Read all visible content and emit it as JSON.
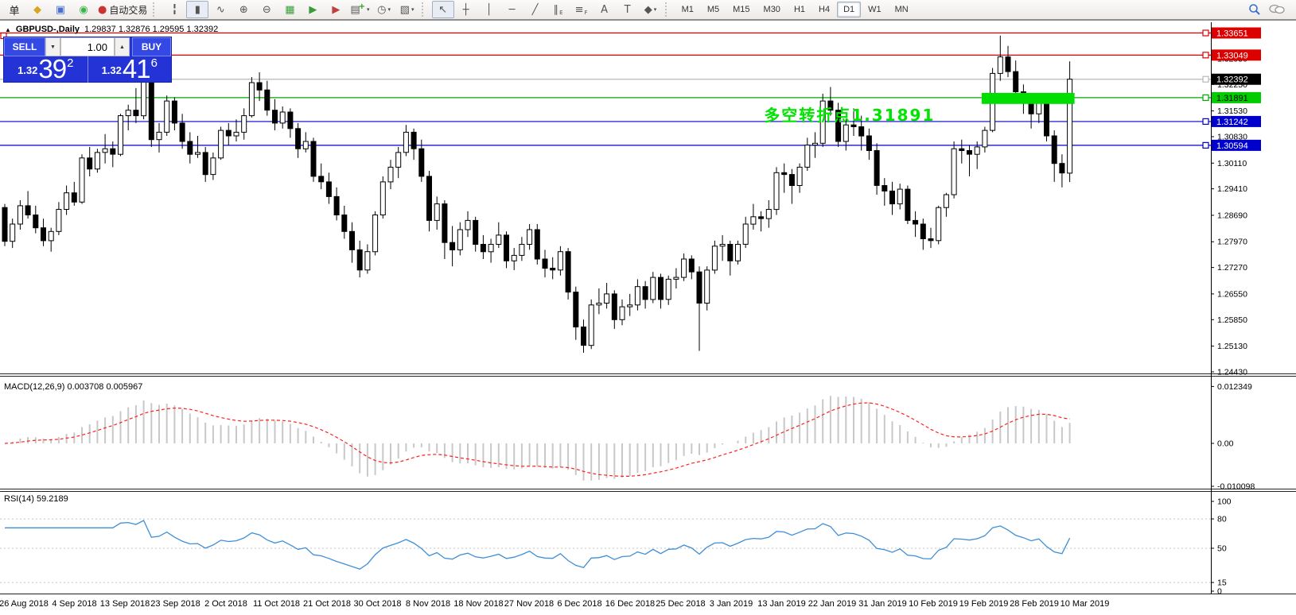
{
  "toolbar": {
    "left_icons": [
      {
        "name": "order-ticket-icon",
        "glyph": "单",
        "color": "#222222"
      },
      {
        "name": "chart-object-icon",
        "glyph": "◆",
        "color": "#d9a520"
      },
      {
        "name": "market-window-icon",
        "glyph": "▣",
        "color": "#4a6fd4"
      },
      {
        "name": "signal-icon",
        "glyph": "◉",
        "color": "#3cb44a"
      },
      {
        "name": "autotrading-icon",
        "glyph": "●",
        "color": "#cc3333",
        "label": "自动交易"
      }
    ],
    "chart_icons": [
      {
        "name": "bar-chart-icon",
        "glyph": "╏"
      },
      {
        "name": "candlestick-chart-icon",
        "glyph": "▮",
        "active": true
      },
      {
        "name": "line-chart-icon",
        "glyph": "∿"
      },
      {
        "name": "zoom-in-icon",
        "glyph": "⊕"
      },
      {
        "name": "zoom-out-icon",
        "glyph": "⊖"
      },
      {
        "name": "tile-windows-icon",
        "glyph": "▦",
        "color": "#3aa03a"
      },
      {
        "name": "auto-scroll-icon",
        "glyph": "▶",
        "color": "#3a9a3a"
      },
      {
        "name": "chart-shift-icon",
        "glyph": "▶",
        "color": "#c04040"
      },
      {
        "name": "templates-icon",
        "glyph": "▤",
        "plus": true,
        "dropdown": true
      },
      {
        "name": "period-icon",
        "glyph": "◷",
        "dropdown": true
      },
      {
        "name": "indicators-icon",
        "glyph": "▧",
        "dropdown": true
      }
    ],
    "draw_icons": [
      {
        "name": "cursor-icon",
        "glyph": "↖",
        "active": true
      },
      {
        "name": "crosshair-icon",
        "glyph": "┼"
      },
      {
        "name": "vertical-line-icon",
        "glyph": "│"
      },
      {
        "name": "horizontal-line-icon",
        "glyph": "─"
      },
      {
        "name": "trendline-icon",
        "glyph": "╱"
      },
      {
        "name": "channel-icon",
        "glyph": "∥",
        "sub": "E"
      },
      {
        "name": "fibonacci-icon",
        "glyph": "≡",
        "sub": "F"
      },
      {
        "name": "text-icon",
        "glyph": "A"
      },
      {
        "name": "text-label-icon",
        "glyph": "T"
      },
      {
        "name": "arrows-icon",
        "glyph": "◆",
        "dropdown": true
      }
    ],
    "timeframes": [
      {
        "label": "M1"
      },
      {
        "label": "M5"
      },
      {
        "label": "M15"
      },
      {
        "label": "M30"
      },
      {
        "label": "H1"
      },
      {
        "label": "H4"
      },
      {
        "label": "D1",
        "active": true
      },
      {
        "label": "W1"
      },
      {
        "label": "MN"
      }
    ],
    "right_icons": [
      {
        "name": "search-icon"
      },
      {
        "name": "chat-icon"
      }
    ]
  },
  "window": {
    "title_symbol": "GBPUSD-,Daily",
    "title_ohlc": "1.29837 1.32876 1.29595 1.32392"
  },
  "trade_panel": {
    "sell_label": "SELL",
    "buy_label": "BUY",
    "volume": "1.00",
    "sell_price": {
      "prefix": "1.32",
      "big": "39",
      "pips": "2"
    },
    "buy_price": {
      "prefix": "1.32",
      "big": "41",
      "pips": "6"
    }
  },
  "chart_data": [
    {
      "type": "candlestick",
      "title": "GBPUSD-,Daily",
      "current_bar": {
        "open": 1.29837,
        "high": 1.32876,
        "low": 1.29595,
        "close": 1.32392
      },
      "price_ticks": [
        "1.32950",
        "1.32250",
        "1.31530",
        "1.30830",
        "1.30110",
        "1.29410",
        "1.28690",
        "1.27970",
        "1.27270",
        "1.26550",
        "1.25850",
        "1.25130",
        "1.24430"
      ],
      "levels": [
        {
          "price": "1.33651",
          "value": 1.33651,
          "line_color": "#dd0000",
          "badge_bg": "#dd0000",
          "badge_fg": "#ffffff"
        },
        {
          "price": "1.33049",
          "value": 1.33049,
          "line_color": "#dd0000",
          "badge_bg": "#dd0000",
          "badge_fg": "#ffffff"
        },
        {
          "price": "1.32392",
          "value": 1.32392,
          "line_color": "#b8b8b8",
          "badge_bg": "#000000",
          "badge_fg": "#ffffff"
        },
        {
          "price": "1.31891",
          "value": 1.31891,
          "line_color": "#00aa00",
          "badge_bg": "#00cc00",
          "badge_fg": "#000000"
        },
        {
          "price": "1.31242",
          "value": 1.31242,
          "line_color": "#0000cc",
          "badge_bg": "#0000cc",
          "badge_fg": "#ffffff"
        },
        {
          "price": "1.30594",
          "value": 1.30594,
          "line_color": "#0000cc",
          "badge_bg": "#0000cc",
          "badge_fg": "#ffffff"
        }
      ],
      "zone": {
        "from_index": 127,
        "to_index": 138,
        "price_top": 1.3202,
        "price_bottom": 1.3172,
        "color": "#00dd00"
      },
      "annotation": {
        "text": "多空转折点1.31891",
        "color": "#00e400",
        "price": 1.3175,
        "at_index": 99
      },
      "x_labels": [
        "26 Aug 2018",
        "4 Sep 2018",
        "13 Sep 2018",
        "23 Sep 2018",
        "2 Oct 2018",
        "11 Oct 2018",
        "21 Oct 2018",
        "30 Oct 2018",
        "8 Nov 2018",
        "18 Nov 2018",
        "27 Nov 2018",
        "6 Dec 2018",
        "16 Dec 2018",
        "25 Dec 2018",
        "3 Jan 2019",
        "13 Jan 2019",
        "22 Jan 2019",
        "31 Jan 2019",
        "10 Feb 2019",
        "19 Feb 2019",
        "28 Feb 2019",
        "10 Mar 2019"
      ],
      "candles": [
        [
          1.289,
          1.29,
          1.2785,
          1.2798
        ],
        [
          1.2798,
          1.286,
          1.278,
          1.2845
        ],
        [
          1.2845,
          1.291,
          1.283,
          1.2895
        ],
        [
          1.2895,
          1.2935,
          1.286,
          1.287
        ],
        [
          1.287,
          1.2895,
          1.282,
          1.2835
        ],
        [
          1.2835,
          1.286,
          1.2785,
          1.28
        ],
        [
          1.28,
          1.2835,
          1.277,
          1.2825
        ],
        [
          1.2825,
          1.2905,
          1.2815,
          1.2885
        ],
        [
          1.2885,
          1.295,
          1.287,
          1.293
        ],
        [
          1.293,
          1.296,
          1.2895,
          1.2905
        ],
        [
          1.2905,
          1.3035,
          1.29,
          1.3025
        ],
        [
          1.3025,
          1.3055,
          1.2975,
          1.2995
        ],
        [
          1.2995,
          1.305,
          1.2985,
          1.304
        ],
        [
          1.304,
          1.309,
          1.301,
          1.305
        ],
        [
          1.305,
          1.307,
          1.3,
          1.3035
        ],
        [
          1.3035,
          1.3145,
          1.303,
          1.314
        ],
        [
          1.314,
          1.317,
          1.31,
          1.3155
        ],
        [
          1.3155,
          1.3215,
          1.312,
          1.314
        ],
        [
          1.314,
          1.326,
          1.313,
          1.324
        ],
        [
          1.324,
          1.325,
          1.3055,
          1.3075
        ],
        [
          1.3075,
          1.312,
          1.304,
          1.3095
        ],
        [
          1.3095,
          1.3195,
          1.3085,
          1.318
        ],
        [
          1.318,
          1.319,
          1.31,
          1.312
        ],
        [
          1.312,
          1.3145,
          1.305,
          1.307
        ],
        [
          1.307,
          1.3095,
          1.301,
          1.3035
        ],
        [
          1.3035,
          1.3085,
          1.3025,
          1.304
        ],
        [
          1.304,
          1.3055,
          1.296,
          1.298
        ],
        [
          1.298,
          1.304,
          1.2965,
          1.3025
        ],
        [
          1.3025,
          1.311,
          1.302,
          1.31
        ],
        [
          1.31,
          1.312,
          1.306,
          1.3085
        ],
        [
          1.3085,
          1.313,
          1.307,
          1.3095
        ],
        [
          1.3095,
          1.316,
          1.3075,
          1.314
        ],
        [
          1.314,
          1.3245,
          1.3135,
          1.323
        ],
        [
          1.323,
          1.3258,
          1.318,
          1.321
        ],
        [
          1.321,
          1.3235,
          1.314,
          1.3155
        ],
        [
          1.3155,
          1.3185,
          1.31,
          1.312
        ],
        [
          1.312,
          1.3165,
          1.3105,
          1.315
        ],
        [
          1.315,
          1.316,
          1.308,
          1.3105
        ],
        [
          1.3105,
          1.312,
          1.3025,
          1.305
        ],
        [
          1.305,
          1.3095,
          1.304,
          1.307
        ],
        [
          1.307,
          1.308,
          1.296,
          1.2975
        ],
        [
          1.2975,
          1.301,
          1.294,
          1.296
        ],
        [
          1.296,
          1.2985,
          1.29,
          1.292
        ],
        [
          1.292,
          1.2945,
          1.2855,
          1.287
        ],
        [
          1.287,
          1.2895,
          1.2805,
          1.2825
        ],
        [
          1.2825,
          1.285,
          1.274,
          1.2775
        ],
        [
          1.2775,
          1.28,
          1.27,
          1.272
        ],
        [
          1.272,
          1.279,
          1.271,
          1.277
        ],
        [
          1.277,
          1.288,
          1.276,
          1.287
        ],
        [
          1.287,
          1.2975,
          1.286,
          1.296
        ],
        [
          1.296,
          1.302,
          1.294,
          1.3
        ],
        [
          1.3,
          1.3055,
          1.297,
          1.304
        ],
        [
          1.304,
          1.3115,
          1.303,
          1.3095
        ],
        [
          1.3095,
          1.3105,
          1.302,
          1.305
        ],
        [
          1.305,
          1.3075,
          1.296,
          1.2975
        ],
        [
          1.2975,
          1.299,
          1.2825,
          1.2855
        ],
        [
          1.2855,
          1.292,
          1.283,
          1.29
        ],
        [
          1.29,
          1.291,
          1.275,
          1.2795
        ],
        [
          1.2795,
          1.284,
          1.273,
          1.2775
        ],
        [
          1.2775,
          1.285,
          1.276,
          1.283
        ],
        [
          1.283,
          1.288,
          1.281,
          1.2855
        ],
        [
          1.2855,
          1.2865,
          1.277,
          1.279
        ],
        [
          1.279,
          1.2815,
          1.275,
          1.277
        ],
        [
          1.277,
          1.2805,
          1.274,
          1.279
        ],
        [
          1.279,
          1.285,
          1.278,
          1.2815
        ],
        [
          1.2815,
          1.2825,
          1.2725,
          1.2745
        ],
        [
          1.2745,
          1.278,
          1.272,
          1.276
        ],
        [
          1.276,
          1.281,
          1.2745,
          1.279
        ],
        [
          1.279,
          1.2845,
          1.2775,
          1.283
        ],
        [
          1.283,
          1.2845,
          1.2735,
          1.275
        ],
        [
          1.275,
          1.2775,
          1.27,
          1.2725
        ],
        [
          1.2725,
          1.2755,
          1.2695,
          1.272
        ],
        [
          1.272,
          1.2785,
          1.2705,
          1.277
        ],
        [
          1.277,
          1.278,
          1.264,
          1.266
        ],
        [
          1.266,
          1.2675,
          1.253,
          1.2565
        ],
        [
          1.2565,
          1.2585,
          1.2495,
          1.2515
        ],
        [
          1.2515,
          1.264,
          1.2505,
          1.2625
        ],
        [
          1.2625,
          1.267,
          1.26,
          1.263
        ],
        [
          1.263,
          1.2685,
          1.2615,
          1.2655
        ],
        [
          1.2655,
          1.2665,
          1.256,
          1.2585
        ],
        [
          1.2585,
          1.264,
          1.257,
          1.262
        ],
        [
          1.262,
          1.2655,
          1.2595,
          1.2625
        ],
        [
          1.2625,
          1.2695,
          1.261,
          1.2675
        ],
        [
          1.2675,
          1.269,
          1.2615,
          1.264
        ],
        [
          1.264,
          1.2715,
          1.263,
          1.27
        ],
        [
          1.27,
          1.271,
          1.2615,
          1.264
        ],
        [
          1.264,
          1.2705,
          1.2625,
          1.2695
        ],
        [
          1.2695,
          1.2725,
          1.267,
          1.27
        ],
        [
          1.27,
          1.2765,
          1.269,
          1.275
        ],
        [
          1.275,
          1.276,
          1.2695,
          1.2715
        ],
        [
          1.2715,
          1.273,
          1.25,
          1.263
        ],
        [
          1.263,
          1.273,
          1.261,
          1.272
        ],
        [
          1.272,
          1.28,
          1.271,
          1.2785
        ],
        [
          1.2785,
          1.2815,
          1.2745,
          1.279
        ],
        [
          1.279,
          1.28,
          1.2705,
          1.2745
        ],
        [
          1.2745,
          1.28,
          1.2735,
          1.279
        ],
        [
          1.279,
          1.2865,
          1.278,
          1.2845
        ],
        [
          1.2845,
          1.29,
          1.283,
          1.2865
        ],
        [
          1.2865,
          1.288,
          1.2825,
          1.286
        ],
        [
          1.286,
          1.291,
          1.2835,
          1.2885
        ],
        [
          1.2885,
          1.3,
          1.287,
          1.2985
        ],
        [
          1.2985,
          1.301,
          1.293,
          1.298
        ],
        [
          1.298,
          1.2995,
          1.29,
          1.295
        ],
        [
          1.295,
          1.301,
          1.293,
          1.3
        ],
        [
          1.3,
          1.308,
          1.299,
          1.306
        ],
        [
          1.306,
          1.3095,
          1.3025,
          1.3065
        ],
        [
          1.3065,
          1.32,
          1.3055,
          1.318
        ],
        [
          1.318,
          1.3218,
          1.314,
          1.3155
        ],
        [
          1.3155,
          1.3175,
          1.3055,
          1.307
        ],
        [
          1.307,
          1.313,
          1.3045,
          1.3115
        ],
        [
          1.3115,
          1.316,
          1.3085,
          1.311
        ],
        [
          1.311,
          1.314,
          1.3045,
          1.3085
        ],
        [
          1.3085,
          1.3105,
          1.302,
          1.3045
        ],
        [
          1.3045,
          1.3065,
          1.2925,
          1.295
        ],
        [
          1.295,
          1.297,
          1.2895,
          1.2935
        ],
        [
          1.2935,
          1.296,
          1.287,
          1.29
        ],
        [
          1.29,
          1.2955,
          1.2885,
          1.294
        ],
        [
          1.294,
          1.295,
          1.2845,
          1.2855
        ],
        [
          1.2855,
          1.288,
          1.281,
          1.2845
        ],
        [
          1.2845,
          1.286,
          1.2775,
          1.2805
        ],
        [
          1.2805,
          1.2835,
          1.278,
          1.28
        ],
        [
          1.28,
          1.2895,
          1.279,
          1.289
        ],
        [
          1.289,
          1.293,
          1.2865,
          1.2925
        ],
        [
          1.2925,
          1.307,
          1.2915,
          1.305
        ],
        [
          1.305,
          1.3075,
          1.301,
          1.3045
        ],
        [
          1.3045,
          1.306,
          1.2975,
          1.3035
        ],
        [
          1.3035,
          1.307,
          1.2995,
          1.3055
        ],
        [
          1.3055,
          1.311,
          1.304,
          1.31
        ],
        [
          1.31,
          1.327,
          1.3095,
          1.3255
        ],
        [
          1.3255,
          1.3358,
          1.3235,
          1.33
        ],
        [
          1.33,
          1.333,
          1.3245,
          1.326
        ],
        [
          1.326,
          1.329,
          1.3185,
          1.3205
        ],
        [
          1.3205,
          1.3225,
          1.3145,
          1.318
        ],
        [
          1.318,
          1.32,
          1.3105,
          1.3145
        ],
        [
          1.3145,
          1.3185,
          1.312,
          1.3175
        ],
        [
          1.3175,
          1.3195,
          1.307,
          1.3085
        ],
        [
          1.3085,
          1.31,
          1.296,
          1.301
        ],
        [
          1.301,
          1.3035,
          1.2945,
          1.2984
        ],
        [
          1.29837,
          1.32876,
          1.29595,
          1.32392
        ]
      ]
    },
    {
      "type": "macd",
      "label": "MACD(12,26,9)",
      "values": [
        "0.003708",
        "0.005967"
      ],
      "params": {
        "fast": 12,
        "slow": 26,
        "signal": 9
      },
      "axis_labels": [
        "0.012349",
        "0.00",
        "-0.010098"
      ],
      "histogram_color": "#c8c8c8",
      "signal_color": "#ff2020"
    },
    {
      "type": "rsi",
      "label": "RSI(14)",
      "value": "59.2189",
      "period": 14,
      "axis_labels": [
        "100",
        "80",
        "50",
        "15",
        "0"
      ],
      "guides": [
        80,
        50,
        15
      ],
      "line_color": "#3f8fd6"
    }
  ]
}
